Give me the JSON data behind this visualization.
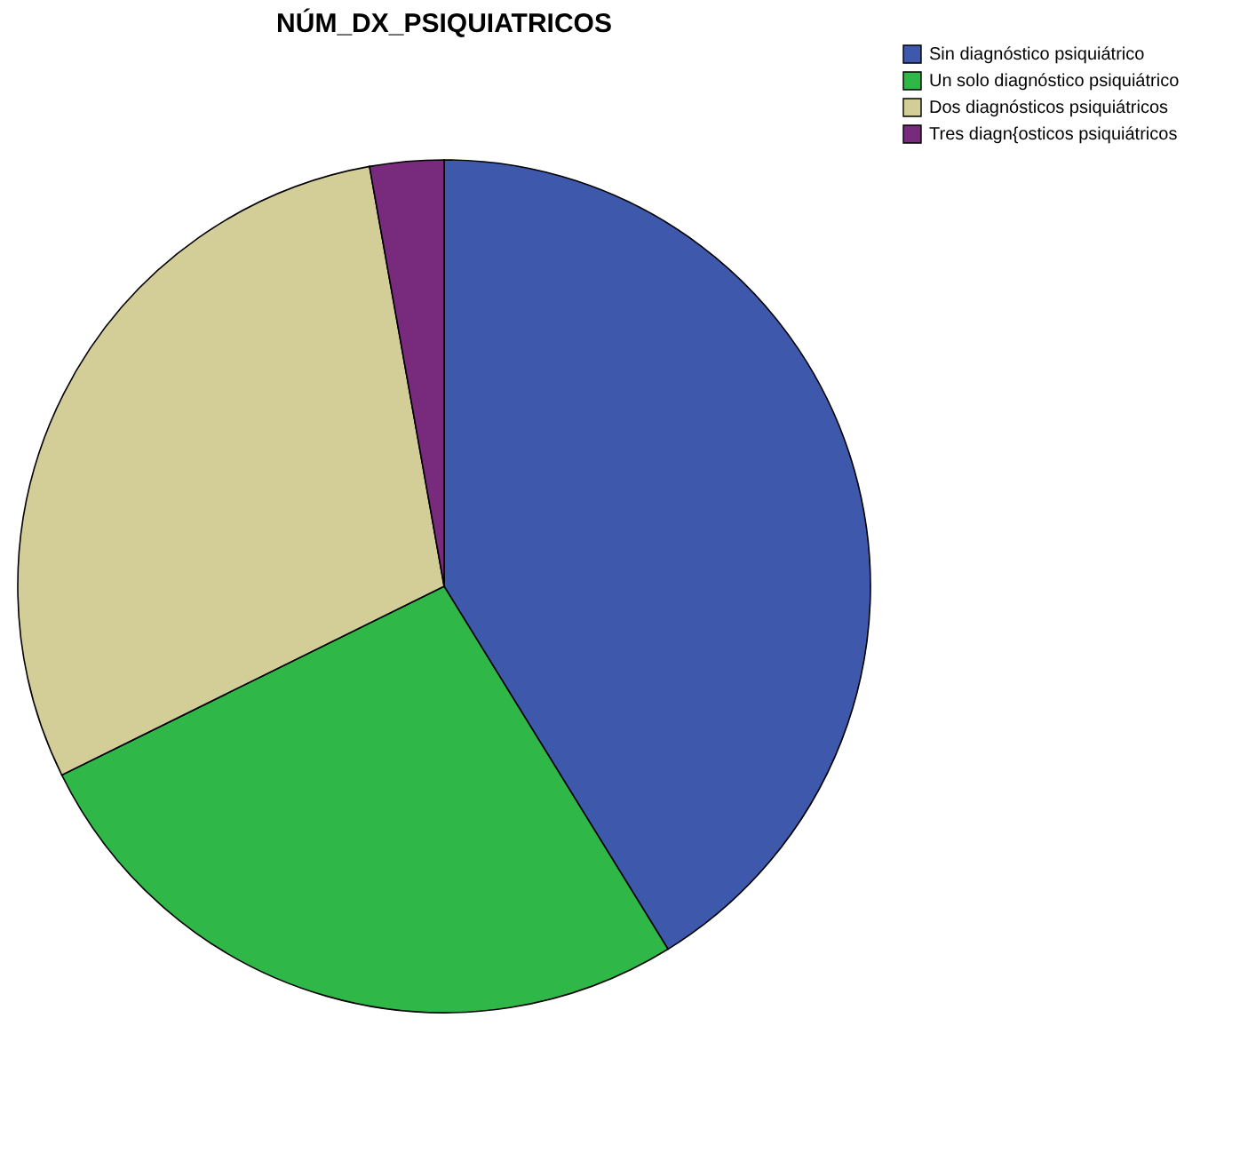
{
  "chart_data": {
    "type": "pie",
    "title": "NÚM_DX_PSIQUIATRICOS",
    "categories": [
      "Sin diagnóstico psiquiátrico",
      "Un solo diagnóstico psiquiátrico",
      "Dos diagnósticos psiquiátricos",
      "Tres diagn{osticos psiquiátricos"
    ],
    "values": [
      41.2,
      26.5,
      29.5,
      2.8
    ],
    "colors": [
      "#3e58ac",
      "#2fb847",
      "#d3ce98",
      "#782a7c"
    ],
    "legend": "top right"
  }
}
